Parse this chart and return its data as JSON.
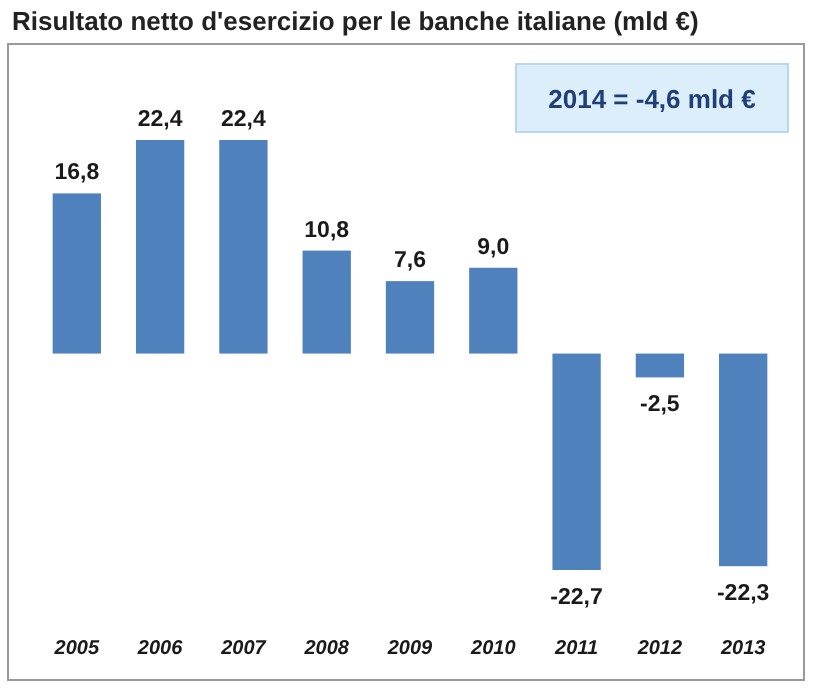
{
  "chart_data": {
    "type": "bar",
    "title": "Risultato netto d'esercizio per le banche italiane (mld €)",
    "categories": [
      "2005",
      "2006",
      "2007",
      "2008",
      "2009",
      "2010",
      "2011",
      "2012",
      "2013"
    ],
    "values": [
      16.8,
      22.4,
      22.4,
      10.8,
      7.6,
      9.0,
      -22.7,
      -2.5,
      -22.3
    ],
    "value_labels": [
      "16,8",
      "22,4",
      "22,4",
      "10,8",
      "7,6",
      "9,0",
      "-22,7",
      "-2,5",
      "-22,3"
    ],
    "color": "#4f81bd",
    "annotations": [
      "2014 = -4,6 mld €"
    ]
  }
}
